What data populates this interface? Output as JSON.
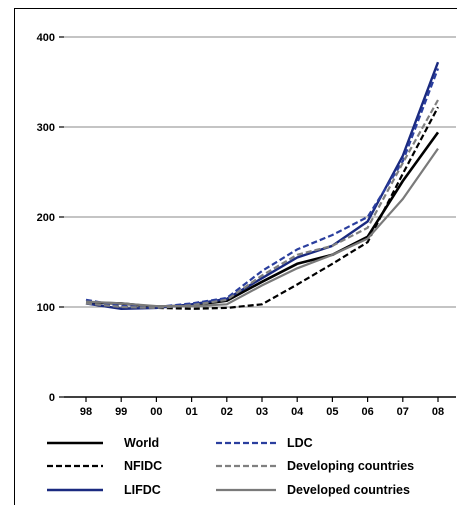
{
  "chart_data": {
    "type": "line",
    "x": [
      "98",
      "99",
      "00",
      "01",
      "02",
      "03",
      "04",
      "05",
      "06",
      "07",
      "08"
    ],
    "ylim": [
      0,
      400
    ],
    "yticks": [
      "0",
      "100",
      "200",
      "300",
      "400"
    ],
    "grid": "horizontal",
    "legend_position": "bottom",
    "series": [
      {
        "name": "World",
        "color": "#000000",
        "dash": "solid",
        "width": 2.6,
        "values": [
          105,
          104,
          100,
          102,
          107,
          128,
          148,
          158,
          178,
          240,
          294
        ]
      },
      {
        "name": "NFIDC",
        "color": "#000000",
        "dash": "dashed",
        "width": 2.2,
        "values": [
          104,
          100,
          99,
          98,
          99,
          103,
          125,
          148,
          172,
          248,
          322
        ]
      },
      {
        "name": "LIFDC",
        "color": "#1a2a80",
        "dash": "solid",
        "width": 2.4,
        "values": [
          104,
          98,
          99,
          103,
          109,
          132,
          155,
          168,
          195,
          268,
          372
        ]
      },
      {
        "name": "LDC",
        "color": "#2a3e9e",
        "dash": "dashed",
        "width": 2.2,
        "values": [
          108,
          101,
          100,
          104,
          110,
          140,
          164,
          180,
          200,
          262,
          365
        ]
      },
      {
        "name": "Developing countries",
        "color": "#808080",
        "dash": "dashed",
        "width": 2.2,
        "values": [
          104,
          100,
          99,
          102,
          108,
          135,
          158,
          168,
          188,
          260,
          330
        ]
      },
      {
        "name": "Developed countries",
        "color": "#7a7a7a",
        "dash": "solid",
        "width": 2.2,
        "values": [
          106,
          104,
          101,
          101,
          103,
          124,
          143,
          158,
          176,
          220,
          276
        ]
      }
    ]
  }
}
